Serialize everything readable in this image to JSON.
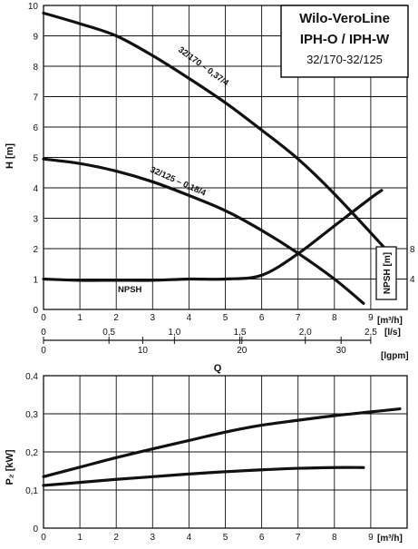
{
  "title_block": {
    "brand": "Wilo-VeroLine",
    "models": "IPH-O / IPH-W",
    "sizes": "32/170-32/125"
  },
  "chart_data": [
    {
      "type": "line",
      "name": "head-curve",
      "xlabel": "Q",
      "ylabel": "H [m]",
      "x_unit": "[m³/h]",
      "xlim": [
        0,
        10
      ],
      "ylim": [
        0,
        10
      ],
      "x_ticks": [
        "0",
        "1",
        "2",
        "3",
        "4",
        "5",
        "6",
        "7",
        "8",
        "9"
      ],
      "y_ticks": [
        "0",
        "1",
        "2",
        "3",
        "4",
        "5",
        "6",
        "7",
        "8",
        "9",
        "10"
      ],
      "secondary_x_axes": [
        {
          "unit": "[l/s]",
          "ticks": [
            {
              "label": "0",
              "value": 0
            },
            {
              "label": "0,5",
              "value": 0.5
            },
            {
              "label": "1,0",
              "value": 1.0
            },
            {
              "label": "1,5",
              "value": 1.5
            },
            {
              "label": "2,0",
              "value": 2.0
            },
            {
              "label": "2,5",
              "value": 2.5
            }
          ]
        },
        {
          "unit": "[lgpm]",
          "ticks": [
            {
              "label": "0",
              "value": 0
            },
            {
              "label": "10",
              "value": 10
            },
            {
              "label": "20",
              "value": 20
            },
            {
              "label": "30",
              "value": 30
            }
          ]
        }
      ],
      "npsh_axis": {
        "label": "NPSH [m]",
        "ticks": [
          "4",
          "8"
        ],
        "ylim": [
          0,
          12
        ]
      },
      "series": [
        {
          "name": "32/170 – 0,37/4",
          "x": [
            0,
            1,
            2,
            3,
            4,
            5,
            6,
            7,
            8,
            9.4
          ],
          "y": [
            9.75,
            9.4,
            9.0,
            8.35,
            7.6,
            6.8,
            5.9,
            4.95,
            3.8,
            2.0
          ]
        },
        {
          "name": "32/125 – 0,18/4",
          "x": [
            0,
            1,
            2,
            3,
            4,
            5,
            6,
            7,
            8,
            8.8
          ],
          "y": [
            4.95,
            4.8,
            4.55,
            4.2,
            3.75,
            3.25,
            2.6,
            1.85,
            1.0,
            0.2
          ]
        },
        {
          "name": "NPSH",
          "x": [
            0,
            1,
            2,
            3,
            4,
            5,
            6,
            7,
            8,
            9,
            9.3
          ],
          "y": [
            1.2,
            1.15,
            1.15,
            1.15,
            1.2,
            1.2,
            1.35,
            2.2,
            3.3,
            4.4,
            4.7
          ]
        }
      ]
    },
    {
      "type": "line",
      "name": "power-curve",
      "ylabel": "P₂ [kW]",
      "x_unit": "[m³/h]",
      "xlim": [
        0,
        10
      ],
      "ylim": [
        0,
        0.4
      ],
      "x_ticks": [
        "0",
        "1",
        "2",
        "3",
        "4",
        "5",
        "6",
        "7",
        "8",
        "9"
      ],
      "y_ticks": [
        "0",
        "0,1",
        "0,2",
        "0,3",
        "0,4"
      ],
      "series": [
        {
          "x": [
            0,
            1,
            2,
            3,
            4,
            5,
            6,
            7,
            8,
            9,
            9.8
          ],
          "y": [
            0.135,
            0.16,
            0.185,
            0.208,
            0.23,
            0.252,
            0.27,
            0.283,
            0.295,
            0.305,
            0.313
          ]
        },
        {
          "x": [
            0,
            1,
            2,
            3,
            4,
            5,
            6,
            7,
            8,
            8.8
          ],
          "y": [
            0.112,
            0.12,
            0.128,
            0.135,
            0.142,
            0.148,
            0.153,
            0.157,
            0.159,
            0.159
          ]
        }
      ]
    }
  ]
}
